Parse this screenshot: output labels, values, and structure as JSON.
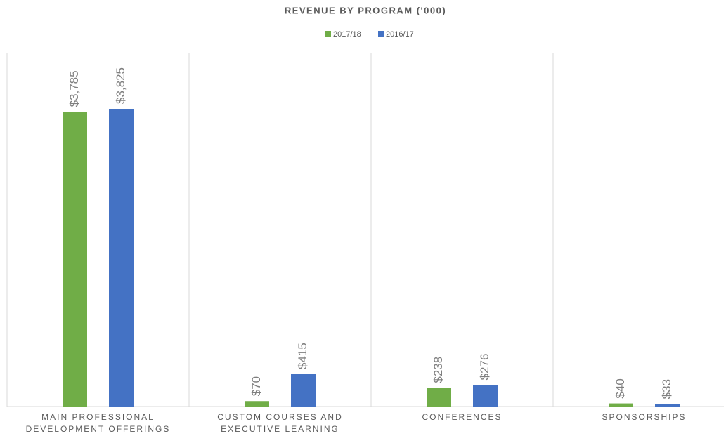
{
  "chart_data": {
    "type": "bar",
    "title": "REVENUE BY PROGRAM ('000)",
    "categories": [
      "MAIN PROFESSIONAL DEVELOPMENT OFFERINGS",
      "CUSTOM COURSES AND EXECUTIVE LEARNING",
      "CONFERENCES",
      "SPONSORSHIPS"
    ],
    "series": [
      {
        "name": "2017/18",
        "color": "#70ad47",
        "values": [
          3785,
          70,
          238,
          40
        ],
        "value_labels": [
          "$3,785",
          "$70",
          "$238",
          "$40"
        ]
      },
      {
        "name": "2016/17",
        "color": "#4472c4",
        "values": [
          3825,
          415,
          276,
          33
        ],
        "value_labels": [
          "$3,825",
          "$415",
          "$276",
          "$33"
        ]
      }
    ],
    "legend": "top"
  }
}
